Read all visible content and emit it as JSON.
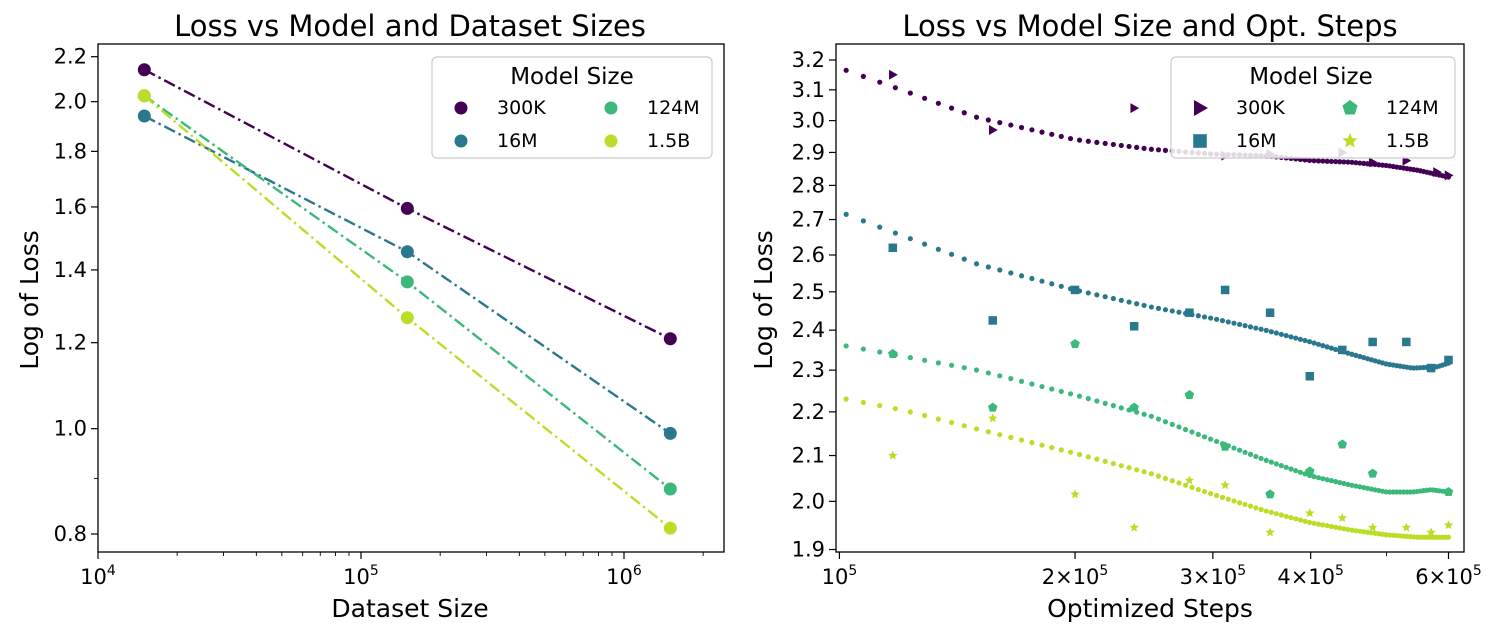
{
  "chart_data": [
    {
      "type": "line",
      "title": "Loss vs Model and Dataset Sizes",
      "xlabel": "Dataset Size",
      "ylabel": "Log of Loss",
      "xscale": "log",
      "yscale": "log",
      "xlim": [
        10000,
        2400000
      ],
      "ylim": [
        0.77,
        2.26
      ],
      "xticks": [
        {
          "value": 10000,
          "label": "10",
          "exp": "4"
        },
        {
          "value": 100000,
          "label": "10",
          "exp": "5"
        },
        {
          "value": 1000000,
          "label": "10",
          "exp": "6"
        }
      ],
      "yticks": [
        {
          "value": 0.8,
          "label": "0.8"
        },
        {
          "value": 1.0,
          "label": "1.0"
        },
        {
          "value": 1.2,
          "label": "1.2"
        },
        {
          "value": 1.4,
          "label": "1.4"
        },
        {
          "value": 1.6,
          "label": "1.6"
        },
        {
          "value": 1.8,
          "label": "1.8"
        },
        {
          "value": 2.0,
          "label": "2.0"
        },
        {
          "value": 2.2,
          "label": "2.2"
        }
      ],
      "x": [
        15000,
        150000,
        1500000
      ],
      "series": [
        {
          "name": "300K",
          "color": "#440154",
          "values": [
            2.14,
            1.595,
            1.21
          ]
        },
        {
          "name": "16M",
          "color": "#2a788e",
          "values": [
            1.94,
            1.455,
            0.99
          ]
        },
        {
          "name": "124M",
          "color": "#3cb97a",
          "values": [
            2.025,
            1.365,
            0.88
          ]
        },
        {
          "name": "1.5B",
          "color": "#bade28",
          "values": [
            2.025,
            1.265,
            0.81
          ]
        }
      ],
      "legend": {
        "title": "Model Size",
        "placement": "top-right",
        "columns": 2
      }
    },
    {
      "type": "scatter",
      "title": "Loss vs Model Size and Opt. Steps",
      "xlabel": "Optimized Steps",
      "ylabel": "Log of Loss",
      "xscale": "log",
      "yscale": "log",
      "xlim": [
        99000,
        628000
      ],
      "ylim": [
        1.895,
        3.255
      ],
      "xticks": [
        {
          "value": 100000,
          "label": "10",
          "exp": "5"
        },
        {
          "value": 200000,
          "label": "2×10",
          "exp": "5"
        },
        {
          "value": 300000,
          "label": "3×10",
          "exp": "5"
        },
        {
          "value": 400000,
          "label": "4×10",
          "exp": "5"
        },
        {
          "value": 600000,
          "label": "6×10",
          "exp": "5"
        }
      ],
      "yticks": [
        {
          "value": 1.9,
          "label": "1.9"
        },
        {
          "value": 2.0,
          "label": "2.0"
        },
        {
          "value": 2.1,
          "label": "2.1"
        },
        {
          "value": 2.2,
          "label": "2.2"
        },
        {
          "value": 2.3,
          "label": "2.3"
        },
        {
          "value": 2.4,
          "label": "2.4"
        },
        {
          "value": 2.5,
          "label": "2.5"
        },
        {
          "value": 2.6,
          "label": "2.6"
        },
        {
          "value": 2.7,
          "label": "2.7"
        },
        {
          "value": 2.8,
          "label": "2.8"
        },
        {
          "value": 2.9,
          "label": "2.9"
        },
        {
          "value": 3.0,
          "label": "3.0"
        },
        {
          "value": 3.1,
          "label": "3.1"
        },
        {
          "value": 3.2,
          "label": "3.2"
        }
      ],
      "series": [
        {
          "name": "300K",
          "color": "#440154",
          "marker": "triangle-right",
          "points": [
            [
              117000,
              3.15
            ],
            [
              157000,
              2.97
            ],
            [
              238000,
              3.04
            ],
            [
              311000,
              2.89
            ],
            [
              355000,
              2.895
            ],
            [
              439000,
              2.9
            ],
            [
              480000,
              2.87
            ],
            [
              530000,
              2.875
            ],
            [
              580000,
              2.84
            ],
            [
              600000,
              2.83
            ]
          ],
          "fit": [
            [
              102000,
              3.165
            ],
            [
              120000,
              3.1
            ],
            [
              150000,
              3.01
            ],
            [
              200000,
              2.94
            ],
            [
              250000,
              2.91
            ],
            [
              300000,
              2.895
            ],
            [
              350000,
              2.89
            ],
            [
              400000,
              2.875
            ],
            [
              450000,
              2.87
            ],
            [
              500000,
              2.86
            ],
            [
              550000,
              2.845
            ],
            [
              600000,
              2.825
            ]
          ]
        },
        {
          "name": "16M",
          "color": "#2a788e",
          "marker": "square",
          "points": [
            [
              117000,
              2.62
            ],
            [
              157000,
              2.425
            ],
            [
              200000,
              2.505
            ],
            [
              238000,
              2.41
            ],
            [
              280000,
              2.445
            ],
            [
              311000,
              2.505
            ],
            [
              355000,
              2.445
            ],
            [
              399000,
              2.285
            ],
            [
              439000,
              2.35
            ],
            [
              480000,
              2.37
            ],
            [
              530000,
              2.37
            ],
            [
              570000,
              2.305
            ],
            [
              600000,
              2.325
            ]
          ],
          "fit": [
            [
              102000,
              2.715
            ],
            [
              120000,
              2.655
            ],
            [
              150000,
              2.575
            ],
            [
              200000,
              2.505
            ],
            [
              250000,
              2.46
            ],
            [
              300000,
              2.43
            ],
            [
              350000,
              2.4
            ],
            [
              400000,
              2.37
            ],
            [
              450000,
              2.34
            ],
            [
              500000,
              2.315
            ],
            [
              540000,
              2.305
            ],
            [
              580000,
              2.308
            ],
            [
              600000,
              2.317
            ]
          ]
        },
        {
          "name": "124M",
          "color": "#3cb97a",
          "marker": "pentagon",
          "points": [
            [
              117000,
              2.34
            ],
            [
              157000,
              2.21
            ],
            [
              200000,
              2.365
            ],
            [
              238000,
              2.21
            ],
            [
              280000,
              2.24
            ],
            [
              311000,
              2.12
            ],
            [
              355000,
              2.015
            ],
            [
              399000,
              2.065
            ],
            [
              439000,
              2.125
            ],
            [
              480000,
              2.06
            ],
            [
              600000,
              2.02
            ]
          ],
          "fit": [
            [
              102000,
              2.36
            ],
            [
              120000,
              2.335
            ],
            [
              150000,
              2.3
            ],
            [
              200000,
              2.24
            ],
            [
              250000,
              2.19
            ],
            [
              300000,
              2.135
            ],
            [
              350000,
              2.09
            ],
            [
              400000,
              2.055
            ],
            [
              450000,
              2.035
            ],
            [
              500000,
              2.02
            ],
            [
              540000,
              2.02
            ],
            [
              570000,
              2.025
            ],
            [
              600000,
              2.02
            ]
          ]
        },
        {
          "name": "1.5B",
          "color": "#bade28",
          "marker": "star",
          "points": [
            [
              117000,
              2.1
            ],
            [
              157000,
              2.185
            ],
            [
              200000,
              2.015
            ],
            [
              238000,
              1.945
            ],
            [
              280000,
              2.045
            ],
            [
              311000,
              2.035
            ],
            [
              355000,
              1.935
            ],
            [
              399000,
              1.975
            ],
            [
              439000,
              1.965
            ],
            [
              480000,
              1.945
            ],
            [
              530000,
              1.945
            ],
            [
              570000,
              1.935
            ],
            [
              600000,
              1.95
            ]
          ],
          "fit": [
            [
              102000,
              2.23
            ],
            [
              120000,
              2.205
            ],
            [
              150000,
              2.16
            ],
            [
              200000,
              2.105
            ],
            [
              250000,
              2.06
            ],
            [
              300000,
              2.015
            ],
            [
              350000,
              1.98
            ],
            [
              400000,
              1.955
            ],
            [
              450000,
              1.94
            ],
            [
              500000,
              1.93
            ],
            [
              550000,
              1.925
            ],
            [
              600000,
              1.925
            ]
          ]
        }
      ],
      "legend": {
        "title": "Model Size",
        "placement": "top-right",
        "columns": 2
      }
    }
  ]
}
